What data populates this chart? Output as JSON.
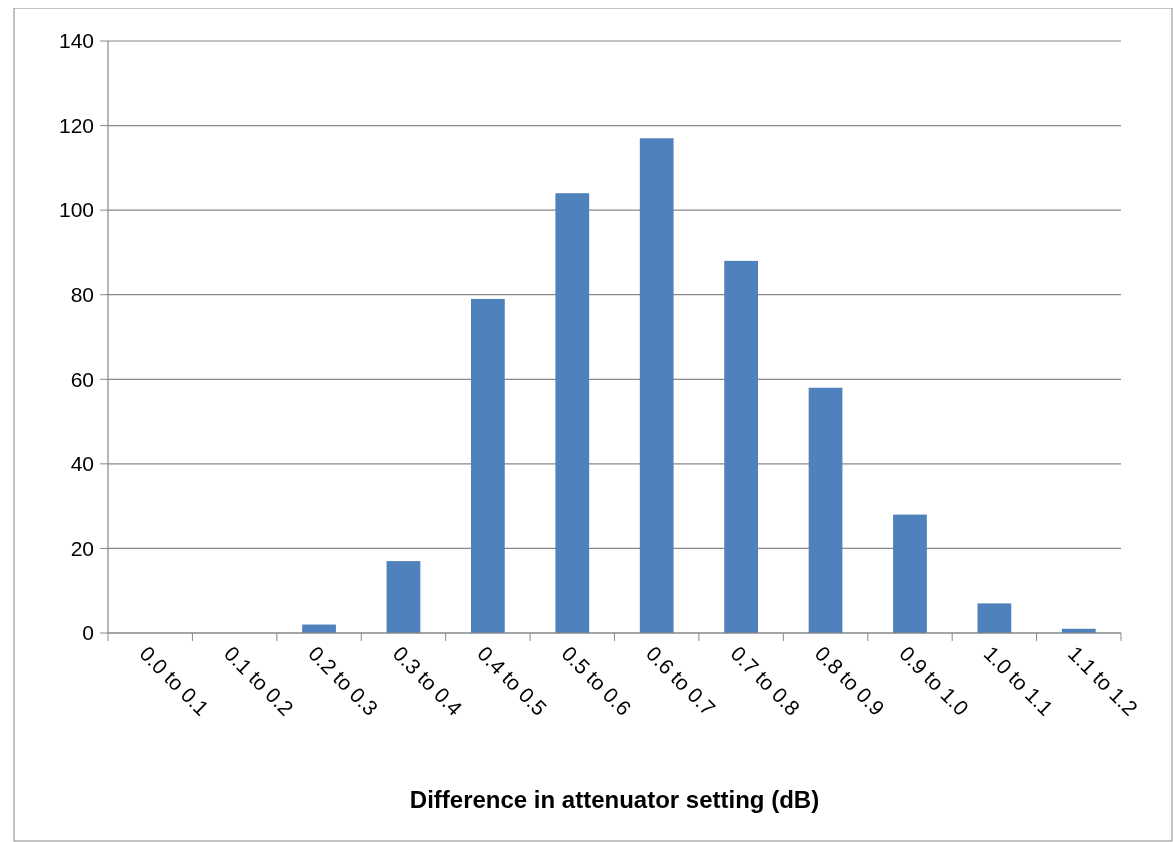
{
  "chart_data": {
    "type": "bar",
    "xlabel": "Difference in attenuator setting (dB)",
    "categories": [
      "0.0 to 0.1",
      "0.1 to 0.2",
      "0.2 to 0.3",
      "0.3 to 0.4",
      "0.4 to 0.5",
      "0.5 to 0.6",
      "0.6 to 0.7",
      "0.7 to 0.8",
      "0.8 to 0.9",
      "0.9 to 1.0",
      "1.0 to 1.1",
      "1.1 to 1.2"
    ],
    "values": [
      0,
      0,
      2,
      17,
      79,
      104,
      117,
      88,
      58,
      28,
      7,
      1
    ],
    "color": "#4f81bd",
    "ylim": [
      0,
      140
    ],
    "yticks": [
      0,
      20,
      40,
      60,
      80,
      100,
      120,
      140
    ],
    "grid": "y"
  }
}
